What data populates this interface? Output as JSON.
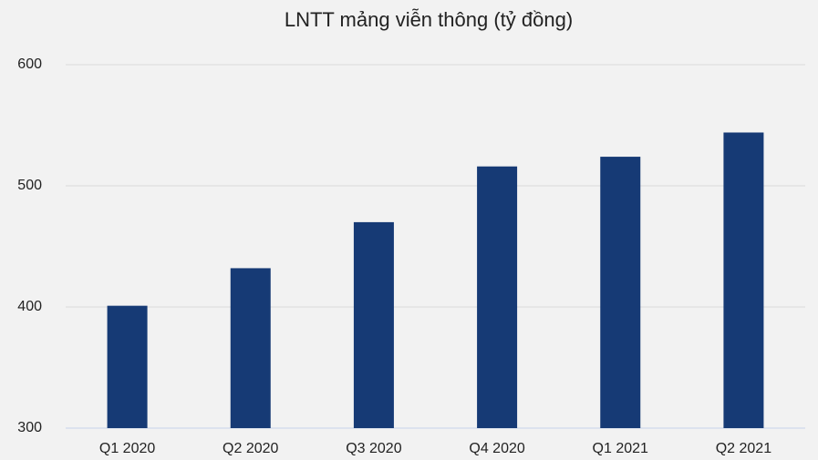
{
  "chart_data": {
    "type": "bar",
    "title": "LNTT mảng viễn thông (tỷ đồng)",
    "categories": [
      "Q1 2020",
      "Q2 2020",
      "Q3 2020",
      "Q4 2020",
      "Q1 2021",
      "Q2 2021"
    ],
    "values": [
      401,
      432,
      470,
      516,
      524,
      544
    ],
    "color": "#163a75",
    "ylim": [
      300,
      600
    ],
    "yticks": [
      300,
      400,
      500,
      600
    ],
    "grid": true
  }
}
